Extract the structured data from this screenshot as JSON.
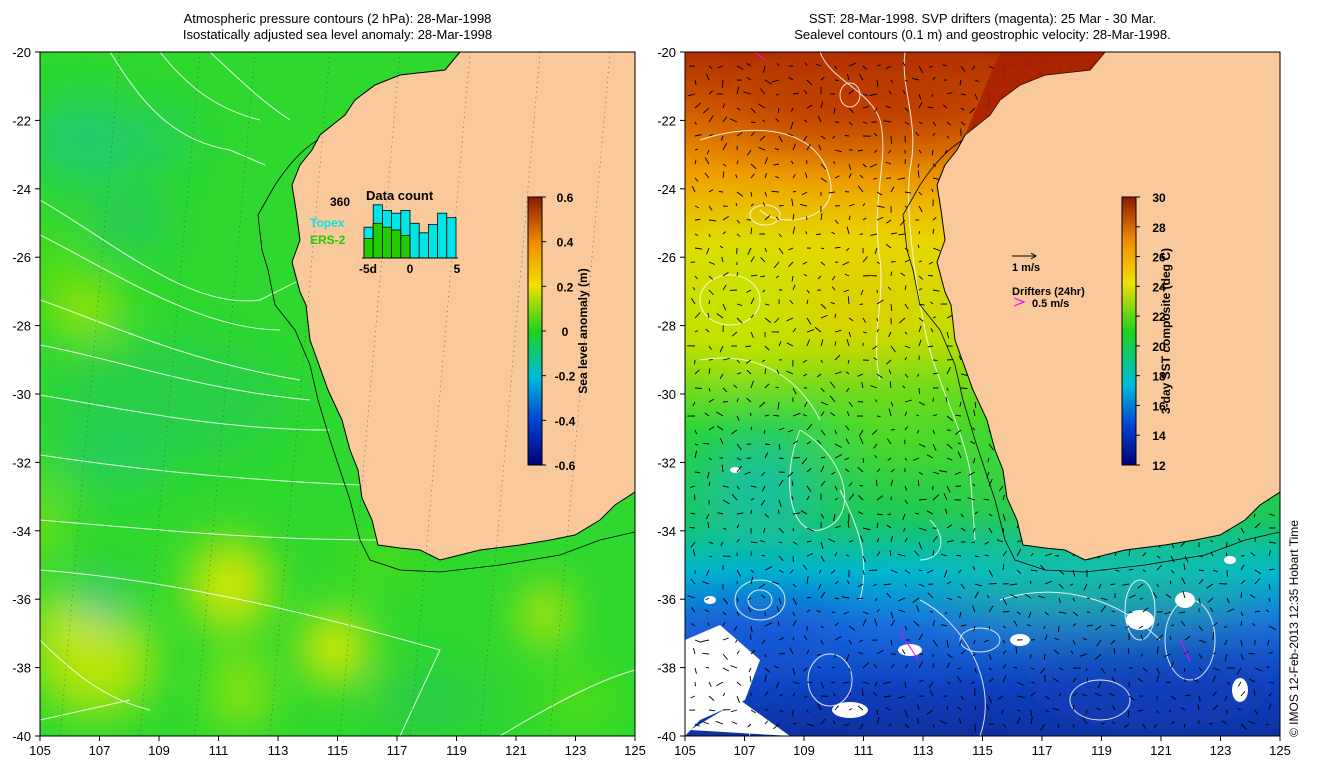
{
  "left_map": {
    "title_line1": "Atmospheric pressure contours (2 hPa): 28-Mar-1998",
    "title_line2": "Isostatically adjusted sea level anomaly: 28-Mar-1998",
    "y_ticks": [
      "-20",
      "-22",
      "-24",
      "-26",
      "-28",
      "-30",
      "-32",
      "-34",
      "-36",
      "-38",
      "-40"
    ],
    "x_ticks": [
      "105",
      "107",
      "109",
      "111",
      "113",
      "115",
      "117",
      "119",
      "121",
      "123",
      "125"
    ],
    "colorbar": {
      "label": "Sea level anomaly (m)",
      "ticks": [
        "0.6",
        "0.4",
        "0.2",
        "0",
        "-0.2",
        "-0.4",
        "-0.6"
      ],
      "range": [
        -0.6,
        0.6
      ]
    },
    "data_count": {
      "title": "Data count",
      "max_label": "360",
      "x_labels": [
        "-5d",
        "0",
        "5"
      ],
      "series": [
        {
          "name": "Topex",
          "color": "#00e5e5",
          "values": [
            0.55,
            0.95,
            0.85,
            0.8,
            0.85,
            0.62,
            0.45,
            0.6,
            0.8,
            0.72
          ]
        },
        {
          "name": "ERS-2",
          "color": "#22cc00",
          "values": [
            0.35,
            0.62,
            0.55,
            0.5,
            0.4,
            0.0,
            0.0,
            0.0,
            0.0,
            0.0
          ]
        }
      ]
    }
  },
  "right_map": {
    "title_line1": "SST: 28-Mar-1998. SVP drifters (magenta): 25 Mar - 30 Mar.",
    "title_line2": "Sealevel contours (0.1 m) and geostrophic velocity: 28-Mar-1998.",
    "y_ticks": [
      "-20",
      "-22",
      "-24",
      "-26",
      "-28",
      "-30",
      "-32",
      "-34",
      "-36",
      "-38",
      "-40"
    ],
    "x_ticks": [
      "105",
      "107",
      "109",
      "111",
      "113",
      "115",
      "117",
      "119",
      "121",
      "123",
      "125"
    ],
    "colorbar": {
      "label": "3-day SST composite (deg C)",
      "ticks": [
        "30",
        "28",
        "26",
        "24",
        "22",
        "20",
        "18",
        "16",
        "14",
        "12"
      ],
      "range": [
        12,
        30
      ]
    },
    "velocity_key": "1 m/s",
    "drifters_key": "Drifters (24hr)",
    "drifters_speed": "0.5 m/s"
  },
  "credit": "© IMOS 12-Feb-2013 12:35 Hobart Time",
  "colors": {
    "land": "#f9c89b",
    "sla_base": "#2ed82e",
    "warm_sst": "#c83a00",
    "cold_sst": "#1046c8",
    "drifter": "#ff00ff"
  }
}
